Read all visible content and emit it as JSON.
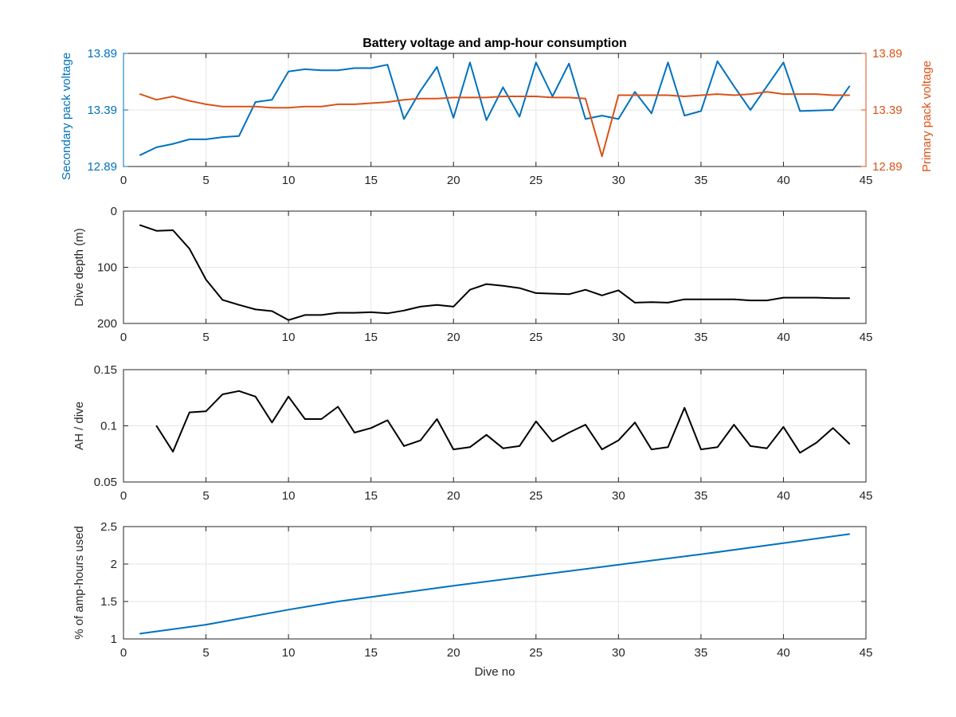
{
  "chart_data": [
    {
      "type": "line",
      "title": "Battery voltage and amp-hour consumption",
      "xlabel": "",
      "ylabel_left": "Secondary pack voltage",
      "ylabel_right": "Primary pack voltage",
      "xlim": [
        0,
        45
      ],
      "ylim_left": [
        12.89,
        13.89
      ],
      "ylim_right": [
        12.89,
        13.89
      ],
      "xticks": [
        "0",
        "5",
        "10",
        "15",
        "20",
        "25",
        "30",
        "35",
        "40",
        "45"
      ],
      "yticks_left": [
        "12.89",
        "13.39",
        "13.89"
      ],
      "yticks_right": [
        "12.89",
        "13.39",
        "13.89"
      ],
      "grid": true,
      "colors": {
        "left": "#0072BD",
        "right": "#D95319"
      },
      "series": [
        {
          "axis": "left",
          "x": [
            1,
            2,
            3,
            4,
            5,
            6,
            7,
            8,
            9,
            10,
            11,
            12,
            13,
            14,
            15,
            16,
            17,
            18,
            19,
            20,
            21,
            22,
            23,
            24,
            25,
            26,
            27,
            28,
            29,
            30,
            31,
            32,
            33,
            34,
            35,
            36,
            37,
            38,
            40,
            41,
            43,
            44
          ],
          "values": [
            12.99,
            13.06,
            13.09,
            13.13,
            13.13,
            13.15,
            13.16,
            13.46,
            13.48,
            13.73,
            13.75,
            13.74,
            13.74,
            13.76,
            13.76,
            13.79,
            13.31,
            13.56,
            13.77,
            13.32,
            13.81,
            13.3,
            13.59,
            13.33,
            13.81,
            13.51,
            13.8,
            13.31,
            13.34,
            13.31,
            13.55,
            13.36,
            13.81,
            13.34,
            13.38,
            13.82,
            13.6,
            13.39,
            13.81,
            13.38,
            13.39,
            13.6
          ]
        },
        {
          "axis": "right",
          "x": [
            1,
            2,
            3,
            4,
            5,
            6,
            7,
            8,
            9,
            10,
            11,
            12,
            13,
            14,
            15,
            16,
            17,
            18,
            19,
            20,
            21,
            22,
            23,
            24,
            25,
            26,
            27,
            28,
            29,
            30,
            31,
            32,
            33,
            34,
            35,
            36,
            37,
            38,
            39,
            40,
            41,
            42,
            43,
            44
          ],
          "values": [
            13.53,
            13.48,
            13.51,
            13.47,
            13.44,
            13.42,
            13.42,
            13.42,
            13.41,
            13.41,
            13.42,
            13.42,
            13.44,
            13.44,
            13.45,
            13.46,
            13.48,
            13.49,
            13.49,
            13.5,
            13.5,
            13.5,
            13.51,
            13.51,
            13.51,
            13.5,
            13.5,
            13.49,
            12.98,
            13.52,
            13.52,
            13.52,
            13.52,
            13.51,
            13.52,
            13.53,
            13.52,
            13.53,
            13.55,
            13.53,
            13.53,
            13.53,
            13.52,
            13.52
          ]
        }
      ]
    },
    {
      "type": "line",
      "xlabel": "",
      "ylabel": "Dive depth (m)",
      "xlim": [
        0,
        45
      ],
      "ylim": [
        0,
        200
      ],
      "y_reversed": true,
      "xticks": [
        "0",
        "5",
        "10",
        "15",
        "20",
        "25",
        "30",
        "35",
        "40",
        "45"
      ],
      "yticks": [
        "0",
        "100",
        "200"
      ],
      "grid": true,
      "color": "#000000",
      "series": [
        {
          "x": [
            1,
            2,
            3,
            4,
            5,
            6,
            7,
            8,
            9,
            10,
            11,
            12,
            13,
            14,
            15,
            16,
            17,
            18,
            19,
            20,
            21,
            22,
            23,
            24,
            25,
            26,
            27,
            28,
            29,
            30,
            31,
            32,
            33,
            34,
            35,
            36,
            37,
            38,
            39,
            40,
            41,
            42,
            43,
            44
          ],
          "values": [
            25,
            35,
            34,
            67,
            122,
            158,
            167,
            175,
            178,
            194,
            185,
            185,
            181,
            181,
            180,
            182,
            177,
            170,
            167,
            170,
            140,
            130,
            133,
            137,
            146,
            147,
            148,
            140,
            150,
            141,
            163,
            162,
            163,
            157,
            157,
            157,
            157,
            159,
            159,
            154,
            154,
            154,
            155,
            155
          ]
        }
      ]
    },
    {
      "type": "line",
      "xlabel": "",
      "ylabel": "AH / dive",
      "xlim": [
        0,
        45
      ],
      "ylim": [
        0.05,
        0.15
      ],
      "xticks": [
        "0",
        "5",
        "10",
        "15",
        "20",
        "25",
        "30",
        "35",
        "40",
        "45"
      ],
      "yticks": [
        "0.05",
        "0.1",
        "0.15"
      ],
      "grid": true,
      "color": "#000000",
      "series": [
        {
          "x": [
            2,
            3,
            4,
            5,
            6,
            7,
            8,
            9,
            10,
            11,
            12,
            13,
            14,
            15,
            16,
            17,
            18,
            19,
            20,
            21,
            22,
            23,
            24,
            25,
            26,
            27,
            28,
            29,
            30,
            31,
            32,
            33,
            34,
            35,
            36,
            37,
            38,
            39,
            40,
            41,
            42,
            43,
            44
          ],
          "values": [
            0.1,
            0.077,
            0.112,
            0.113,
            0.128,
            0.131,
            0.126,
            0.103,
            0.126,
            0.106,
            0.106,
            0.117,
            0.094,
            0.098,
            0.105,
            0.082,
            0.087,
            0.106,
            0.079,
            0.081,
            0.092,
            0.08,
            0.082,
            0.104,
            0.086,
            0.094,
            0.101,
            0.079,
            0.087,
            0.103,
            0.079,
            0.081,
            0.116,
            0.079,
            0.081,
            0.101,
            0.082,
            0.08,
            0.099,
            0.076,
            0.085,
            0.098,
            0.084
          ]
        }
      ]
    },
    {
      "type": "line",
      "xlabel": "Dive no",
      "ylabel": "% of amp-hours used",
      "xlim": [
        0,
        45
      ],
      "ylim": [
        1,
        2.5
      ],
      "xticks": [
        "0",
        "5",
        "10",
        "15",
        "20",
        "25",
        "30",
        "35",
        "40",
        "45"
      ],
      "yticks": [
        "1",
        "1.5",
        "2",
        "2.5"
      ],
      "grid": true,
      "color": "#0072BD",
      "series": [
        {
          "x": [
            1,
            3,
            5,
            7,
            10,
            13,
            15,
            20,
            25,
            30,
            35,
            40,
            44
          ],
          "values": [
            1.07,
            1.13,
            1.19,
            1.27,
            1.39,
            1.5,
            1.56,
            1.71,
            1.85,
            1.99,
            2.13,
            2.28,
            2.4
          ]
        }
      ]
    }
  ]
}
